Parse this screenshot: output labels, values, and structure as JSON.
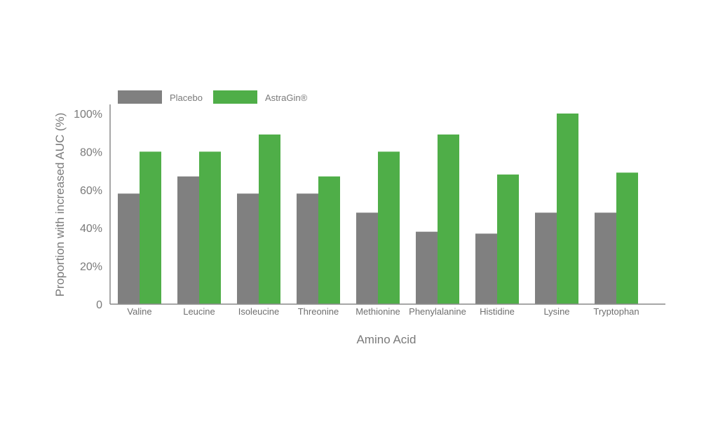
{
  "chart_data": {
    "type": "bar",
    "xlabel": "Amino Acid",
    "ylabel": "Proportion with increased AUC (%)",
    "ylim": [
      0,
      100
    ],
    "yticks": [
      {
        "value": 0,
        "label": "0"
      },
      {
        "value": 20,
        "label": "20%"
      },
      {
        "value": 40,
        "label": "40%"
      },
      {
        "value": 60,
        "label": "60%"
      },
      {
        "value": 80,
        "label": "80%"
      },
      {
        "value": 100,
        "label": "100%"
      }
    ],
    "categories": [
      "Valine",
      "Leucine",
      "Isoleucine",
      "Threonine",
      "Methionine",
      "Phenylalanine",
      "Histidine",
      "Lysine",
      "Tryptophan"
    ],
    "series": [
      {
        "name": "Placebo",
        "color": "#808080",
        "values": [
          58,
          67,
          58,
          58,
          48,
          38,
          37,
          48,
          48
        ]
      },
      {
        "name": "AstraGin®",
        "color": "#4fae48",
        "values": [
          80,
          80,
          89,
          67,
          80,
          89,
          68,
          100,
          69
        ]
      }
    ],
    "legend": "top-left",
    "grid": false
  }
}
